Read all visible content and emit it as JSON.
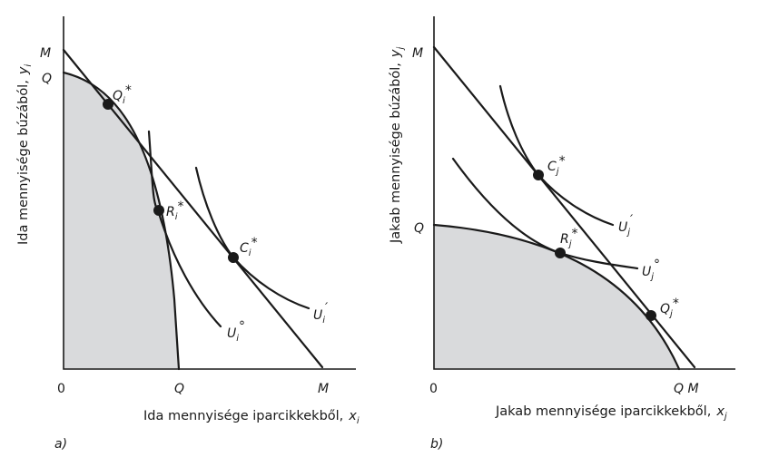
{
  "panel_a": {
    "caption": "a)",
    "y_axis_title": "Ida mennyisége búzából,",
    "y_axis_var": "y",
    "y_axis_var_sub": "i",
    "x_axis_title": "Ida mennyisége iparcikkekből,",
    "x_axis_var": "x",
    "x_axis_var_sub": "i",
    "origin": "0",
    "y_label_M": "M",
    "y_label_Q": "Q",
    "x_label_Q": "Q",
    "x_label_M": "M",
    "pt_Q": {
      "base": "Q",
      "sub": "i",
      "sup": "*"
    },
    "pt_R": {
      "base": "R",
      "sub": "i",
      "sup": "*"
    },
    "pt_C": {
      "base": "C",
      "sub": "i",
      "sup": "*"
    },
    "U0": {
      "base": "U",
      "sub": "i",
      "sup": "°"
    },
    "U1": {
      "base": "U",
      "sub": "i",
      "sup": "′"
    }
  },
  "panel_b": {
    "caption": "b)",
    "y_axis_title": "Jakab mennyisége búzából,",
    "y_axis_var": "y",
    "y_axis_var_sub": "j",
    "x_axis_title": "Jakab mennyisége iparcikkekből,",
    "x_axis_var": "x",
    "x_axis_var_sub": "j",
    "origin": "0",
    "y_label_M": "M",
    "y_label_Q": "Q",
    "x_label_QM": "Q M",
    "pt_C": {
      "base": "C",
      "sub": "j",
      "sup": "*"
    },
    "pt_R": {
      "base": "R",
      "sub": "j",
      "sup": "*"
    },
    "pt_Q": {
      "base": "Q",
      "sub": "j",
      "sup": "*"
    },
    "U1": {
      "base": "U",
      "sub": "j",
      "sup": "′"
    },
    "U0": {
      "base": "U",
      "sub": "j",
      "sup": "°"
    }
  }
}
